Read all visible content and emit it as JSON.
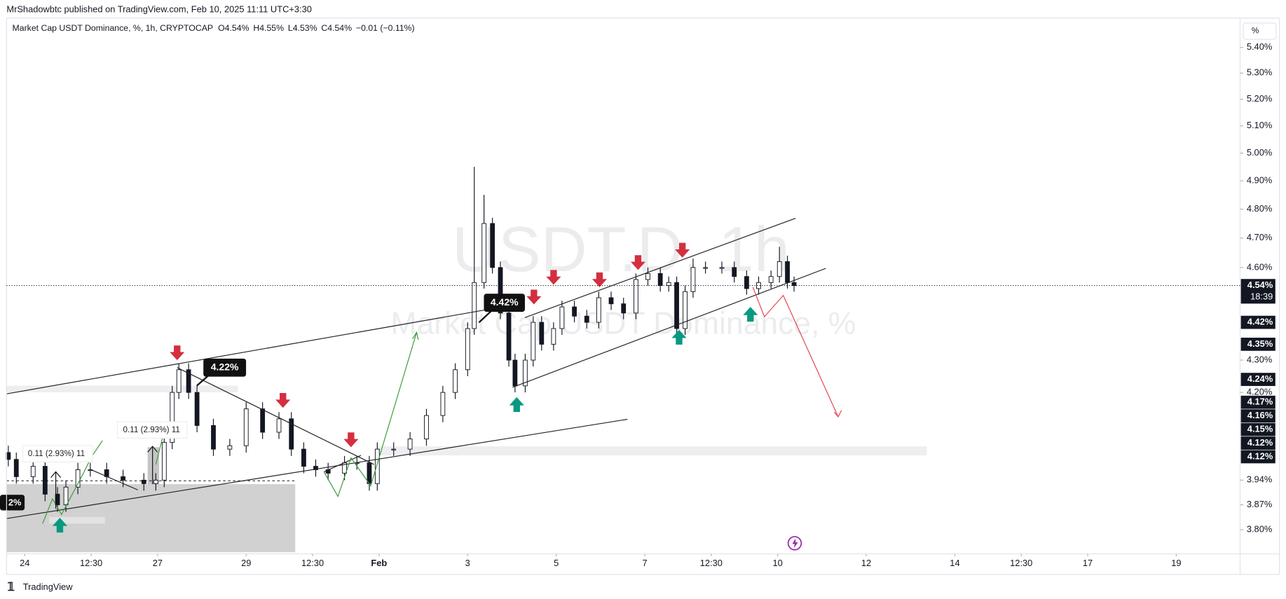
{
  "header": {
    "published": "MrShadowbtc published on TradingView.com, Feb 10, 2025 11:11 UTC+3:30",
    "symbol": "Market Cap USDT Dominance, %, 1h, CRYPTOCAP",
    "ohlc": [
      "O4.54%",
      "H4.55%",
      "L4.53%",
      "C4.54%",
      "−0.01 (−0.11%)"
    ]
  },
  "chart_data": {
    "type": "candlestick",
    "watermark": [
      "USDT.D, 1h",
      "Market Cap USDT Dominance, %"
    ],
    "unit": "%",
    "x": [
      23.63,
      23.81,
      24.19,
      24.46,
      24.74,
      24.93,
      25.2,
      25.48,
      25.85,
      26.22,
      26.69,
      26.96,
      27.15,
      27.33,
      27.48,
      27.7,
      27.89,
      28.26,
      28.63,
      29.0,
      29.37,
      29.74,
      30.02,
      30.3,
      30.57,
      30.85,
      31.22,
      31.5,
      31.78,
      31.96,
      32.33,
      32.7,
      33.07,
      33.44,
      33.72,
      34.0,
      34.15,
      34.37,
      34.56,
      34.74,
      34.93,
      35.07,
      35.3,
      35.48,
      35.67,
      35.94,
      36.13,
      36.41,
      36.69,
      36.96,
      37.24,
      37.52,
      37.8,
      38.07,
      38.35,
      38.54,
      38.72,
      38.91,
      39.09,
      39.37,
      39.74,
      40.02,
      40.3,
      40.57,
      40.85,
      41.04,
      41.22,
      41.37
    ],
    "open": [
      4.02,
      4.0,
      3.95,
      3.98,
      3.9,
      3.87,
      3.92,
      3.97,
      3.97,
      3.95,
      3.94,
      3.93,
      3.94,
      4.05,
      4.2,
      4.27,
      4.2,
      4.1,
      4.03,
      4.04,
      4.15,
      4.08,
      4.12,
      4.03,
      3.98,
      3.97,
      3.96,
      3.99,
      3.99,
      3.93,
      4.03,
      4.03,
      4.06,
      4.13,
      4.2,
      4.27,
      4.4,
      4.55,
      4.75,
      4.6,
      4.45,
      4.3,
      4.22,
      4.3,
      4.42,
      4.35,
      4.4,
      4.47,
      4.44,
      4.42,
      4.5,
      4.48,
      4.45,
      4.56,
      4.58,
      4.54,
      4.55,
      4.4,
      4.52,
      4.6,
      4.6,
      4.6,
      4.57,
      4.53,
      4.55,
      4.57,
      4.62,
      4.55
    ],
    "high": [
      4.04,
      4.02,
      4.0,
      4.0,
      3.92,
      3.94,
      3.99,
      3.99,
      3.99,
      3.97,
      3.96,
      3.96,
      4.07,
      4.22,
      4.29,
      4.29,
      4.22,
      4.12,
      4.06,
      4.17,
      4.17,
      4.14,
      4.14,
      4.05,
      4.0,
      3.99,
      4.01,
      4.01,
      4.01,
      4.05,
      4.05,
      4.08,
      4.15,
      4.22,
      4.29,
      4.42,
      4.95,
      4.85,
      4.77,
      4.62,
      4.47,
      4.32,
      4.32,
      4.44,
      4.44,
      4.42,
      4.49,
      4.49,
      4.46,
      4.52,
      4.52,
      4.5,
      4.58,
      4.6,
      4.6,
      4.57,
      4.57,
      4.54,
      4.63,
      4.62,
      4.62,
      4.62,
      4.59,
      4.57,
      4.59,
      4.67,
      4.64,
      4.57
    ],
    "low": [
      3.98,
      3.93,
      3.93,
      3.88,
      3.85,
      3.85,
      3.9,
      3.95,
      3.93,
      3.92,
      3.91,
      3.91,
      3.92,
      4.03,
      4.18,
      4.18,
      4.08,
      4.01,
      4.01,
      4.02,
      4.06,
      4.06,
      4.01,
      3.96,
      3.95,
      3.94,
      3.94,
      3.97,
      3.91,
      3.91,
      4.01,
      4.01,
      4.04,
      4.11,
      4.18,
      4.25,
      4.38,
      4.53,
      4.58,
      4.43,
      4.28,
      4.2,
      4.2,
      4.28,
      4.33,
      4.33,
      4.38,
      4.42,
      4.4,
      4.4,
      4.46,
      4.43,
      4.43,
      4.54,
      4.52,
      4.52,
      4.38,
      4.38,
      4.5,
      4.58,
      4.58,
      4.55,
      4.51,
      4.51,
      4.53,
      4.55,
      4.53,
      4.52
    ],
    "close": [
      4.0,
      3.95,
      3.98,
      3.9,
      3.87,
      3.92,
      3.97,
      3.97,
      3.95,
      3.94,
      3.93,
      3.94,
      4.05,
      4.2,
      4.27,
      4.2,
      4.1,
      4.03,
      4.04,
      4.15,
      4.08,
      4.12,
      4.03,
      3.98,
      3.97,
      3.96,
      3.99,
      3.99,
      3.93,
      4.03,
      4.03,
      4.06,
      4.13,
      4.2,
      4.27,
      4.4,
      4.55,
      4.75,
      4.6,
      4.45,
      4.3,
      4.22,
      4.3,
      4.42,
      4.35,
      4.4,
      4.47,
      4.44,
      4.42,
      4.5,
      4.48,
      4.45,
      4.56,
      4.58,
      4.54,
      4.55,
      4.4,
      4.52,
      4.6,
      4.6,
      4.6,
      4.57,
      4.53,
      4.55,
      4.57,
      4.62,
      4.55,
      4.54
    ],
    "up_color": "#ffffff",
    "down_color": "#131722",
    "xlim": [
      23.59,
      51.44
    ],
    "xticks": [
      24,
      {
        "value": 25.5,
        "label": "12:30"
      },
      27,
      29,
      {
        "value": 30.5,
        "label": "12:30"
      },
      {
        "value": 32,
        "label": "Feb"
      },
      {
        "value": 34,
        "label": "3"
      },
      {
        "value": 36,
        "label": "5"
      },
      {
        "value": 38,
        "label": "7"
      },
      {
        "value": 39.5,
        "label": "12:30"
      },
      {
        "value": 41,
        "label": "10"
      },
      {
        "value": 43,
        "label": "12"
      },
      {
        "value": 45,
        "label": "14"
      },
      {
        "value": 46.5,
        "label": "12:30"
      },
      {
        "value": 48,
        "label": "17"
      },
      {
        "value": 50,
        "label": "19"
      }
    ],
    "ylim": [
      3.734,
      5.497
    ],
    "log_scale": true,
    "grid": false,
    "yticks": [
      {
        "value": 5.4,
        "label": "5.40%"
      },
      {
        "value": 5.3,
        "label": "5.30%"
      },
      {
        "value": 5.2,
        "label": "5.20%"
      },
      {
        "value": 5.1,
        "label": "5.10%"
      },
      {
        "value": 5.0,
        "label": "5.00%"
      },
      {
        "value": 4.9,
        "label": "4.90%"
      },
      {
        "value": 4.8,
        "label": "4.80%"
      },
      {
        "value": 4.7,
        "label": "4.70%"
      },
      {
        "value": 4.6,
        "label": "4.60%"
      },
      {
        "value": 4.3,
        "label": "4.30%"
      },
      {
        "value": 4.2,
        "label": "4.20%"
      },
      {
        "value": 3.94,
        "label": "3.94%"
      },
      {
        "value": 3.87,
        "label": "3.87%"
      },
      {
        "value": 3.8,
        "label": "3.80%"
      }
    ],
    "last_price": {
      "value": 4.54,
      "label": "4.54%",
      "countdown": "18:39"
    },
    "price_tags": [
      {
        "value": 4.42,
        "label": "4.42%"
      },
      {
        "value": 4.35,
        "label": "4.35%"
      },
      {
        "value": 4.24,
        "label": "4.24%"
      },
      {
        "value": 4.17,
        "label": "4.17%"
      },
      {
        "value": 4.16,
        "label": "4.16%"
      },
      {
        "value": 4.15,
        "label": "4.15%"
      },
      {
        "value": 4.12,
        "label": "4.12%"
      },
      {
        "value": 4.12,
        "label": "4.12%"
      }
    ],
    "annotations": [
      "4.42%",
      "4.22%",
      "0.11 (2.93%) 11",
      "0.11 (2.93%) 11",
      "2%"
    ]
  },
  "footer": {
    "brand": "TradingView"
  }
}
